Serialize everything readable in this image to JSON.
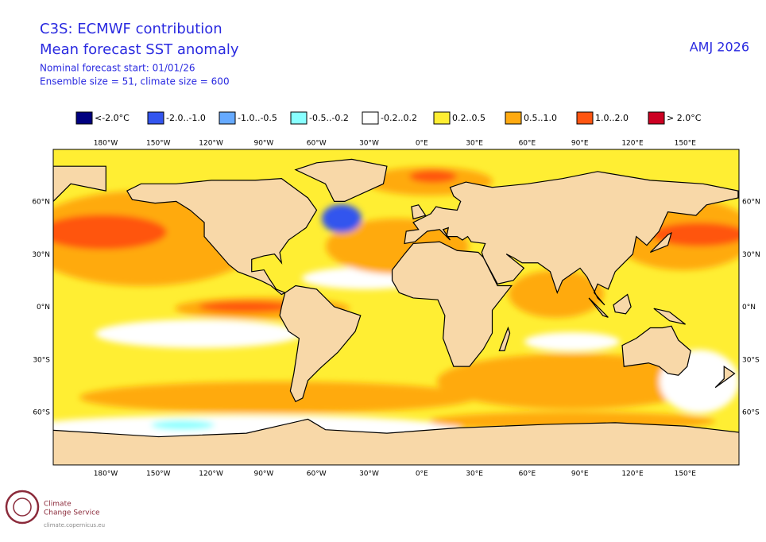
{
  "header": {
    "title": "C3S: ECMWF contribution",
    "subtitle": "Mean forecast SST anomaly",
    "start": "Nominal forecast start: 01/01/26",
    "ensemble": "Ensemble size = 51, climate size = 600",
    "period": "AMJ 2026"
  },
  "legend": [
    {
      "label": "<-2.0°C",
      "color": "#00007f"
    },
    {
      "label": "-2.0..-1.0",
      "color": "#3355ee"
    },
    {
      "label": "-1.0..-0.5",
      "color": "#66aaff"
    },
    {
      "label": "-0.5..-0.2",
      "color": "#88ffff"
    },
    {
      "label": "-0.2..0.2",
      "color": "#ffffff"
    },
    {
      "label": "0.2..0.5",
      "color": "#ffee33"
    },
    {
      "label": "0.5..1.0",
      "color": "#ffaa11"
    },
    {
      "label": "1.0..2.0",
      "color": "#ff5511"
    },
    {
      "label": "> 2.0°C",
      "color": "#cc0022"
    }
  ],
  "map": {
    "lon_labels": [
      "180°W",
      "150°W",
      "120°W",
      "90°W",
      "60°W",
      "30°W",
      "0°E",
      "30°E",
      "60°E",
      "90°E",
      "120°E",
      "150°E"
    ],
    "lat_labels": [
      "60°N",
      "30°N",
      "0°N",
      "30°S",
      "60°S"
    ]
  },
  "logo": {
    "line1": "Climate",
    "line2": "Change Service",
    "url": "climate.copernicus.eu"
  }
}
